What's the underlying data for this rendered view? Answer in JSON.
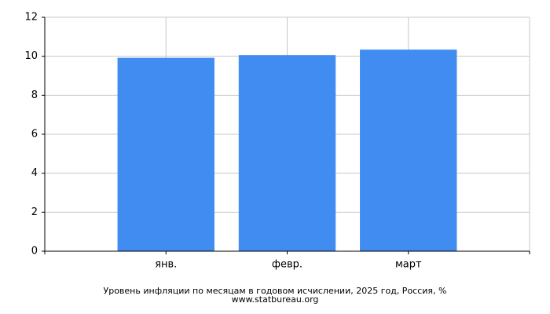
{
  "chart_data": {
    "type": "bar",
    "title": "Уровень инфляции по месяцам в годовом исчислении, 2025 год, Россия, %",
    "source": "www.statbureau.org",
    "categories": [
      "янв.",
      "февр.",
      "март"
    ],
    "values": [
      9.92,
      10.06,
      10.34
    ],
    "color": "#418cf0",
    "ylim": [
      0,
      12
    ],
    "yticks": [
      0,
      2,
      4,
      6,
      8,
      10,
      12
    ],
    "grid": true
  }
}
